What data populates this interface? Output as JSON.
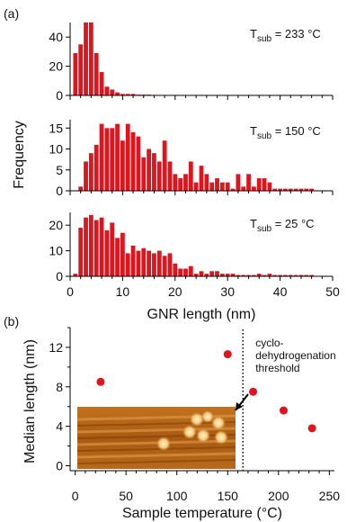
{
  "panel_labels": {
    "a": "(a)",
    "b": "(b)"
  },
  "stm_inset": {
    "description_icon": "stm-image"
  },
  "chart_data": [
    {
      "type": "bar",
      "panel": "a-top",
      "annotation": {
        "prefix": "T",
        "sub": "sub",
        "suffix": " = 233 °C"
      },
      "xlim": [
        0,
        50
      ],
      "ylim": [
        0,
        50
      ],
      "yticks": [
        0,
        20,
        40
      ],
      "bar_width": 1,
      "x": [
        1,
        2,
        3,
        4,
        5,
        6,
        7,
        8,
        9,
        10,
        11,
        12,
        13,
        14,
        15
      ],
      "values": [
        29,
        35,
        50,
        50,
        29,
        16,
        6,
        4,
        2,
        1,
        1,
        1,
        0.5,
        0.5,
        0.5
      ]
    },
    {
      "type": "bar",
      "panel": "a-middle",
      "annotation": {
        "prefix": "T",
        "sub": "sub",
        "suffix": " = 150 °C"
      },
      "ylabel": "Frequency",
      "xlim": [
        0,
        50
      ],
      "ylim": [
        0,
        17
      ],
      "yticks": [
        0,
        5,
        10,
        15
      ],
      "bar_width": 1,
      "x": [
        2,
        3,
        4,
        5,
        6,
        7,
        8,
        9,
        10,
        11,
        12,
        13,
        14,
        15,
        16,
        17,
        18,
        19,
        20,
        21,
        22,
        23,
        24,
        25,
        26,
        27,
        28,
        29,
        30,
        31,
        32,
        33,
        34,
        35,
        36,
        37,
        38,
        39,
        40,
        41,
        42,
        43,
        44,
        45,
        46
      ],
      "values": [
        1,
        7,
        9,
        11,
        16,
        15,
        15,
        16,
        12,
        16,
        14,
        13,
        8,
        10,
        9,
        7,
        12,
        7,
        4,
        3,
        4,
        7,
        2,
        6,
        4,
        2,
        3,
        2,
        2,
        0.5,
        4,
        1,
        4,
        1,
        3,
        3,
        2,
        0.5,
        0.5,
        0.5,
        0.5,
        0.5,
        0.5,
        0.5,
        0.5
      ]
    },
    {
      "type": "bar",
      "panel": "a-bottom",
      "annotation": {
        "prefix": "T",
        "sub": "sub",
        "suffix": " = 25 °C"
      },
      "xlabel": "GNR length (nm)",
      "xlim": [
        0,
        50
      ],
      "xticks": [
        0,
        10,
        20,
        30,
        40,
        50
      ],
      "ylim": [
        0,
        25
      ],
      "yticks": [
        0,
        10,
        20
      ],
      "bar_width": 1,
      "x": [
        1,
        2,
        3,
        4,
        5,
        6,
        7,
        8,
        9,
        10,
        11,
        12,
        13,
        14,
        15,
        16,
        17,
        18,
        19,
        20,
        21,
        22,
        23,
        24,
        25,
        26,
        27,
        28,
        29,
        30,
        31,
        32,
        33,
        34,
        35,
        36,
        37,
        38,
        39,
        40,
        41,
        42,
        43,
        44,
        45,
        46
      ],
      "values": [
        1,
        19,
        23,
        24,
        22,
        23,
        18,
        21,
        15,
        17,
        9,
        12,
        10,
        11,
        10,
        9,
        10,
        8,
        9,
        5,
        3,
        3,
        4,
        1,
        2,
        1,
        2,
        2,
        1,
        1,
        1,
        0.5,
        0.5,
        0.5,
        0.5,
        1,
        0.5,
        1,
        0.5,
        0.5,
        0.5,
        0.5,
        0.5,
        0.5,
        0.5,
        0.5
      ]
    },
    {
      "type": "scatter",
      "panel": "b",
      "xlabel": "Sample temperature (°C)",
      "ylabel": "Median length (nm)",
      "xlim": [
        -5,
        255
      ],
      "ylim": [
        -0.5,
        14
      ],
      "xticks": [
        0,
        50,
        100,
        150,
        200,
        250
      ],
      "yticks": [
        0,
        4,
        8,
        12
      ],
      "x": [
        25,
        150,
        175,
        205,
        233
      ],
      "y": [
        8.5,
        11.3,
        7.5,
        5.6,
        3.8
      ],
      "threshold_x": 165,
      "annotation_lines": [
        "cyclo-",
        "dehydrogenation",
        "threshold"
      ]
    }
  ]
}
